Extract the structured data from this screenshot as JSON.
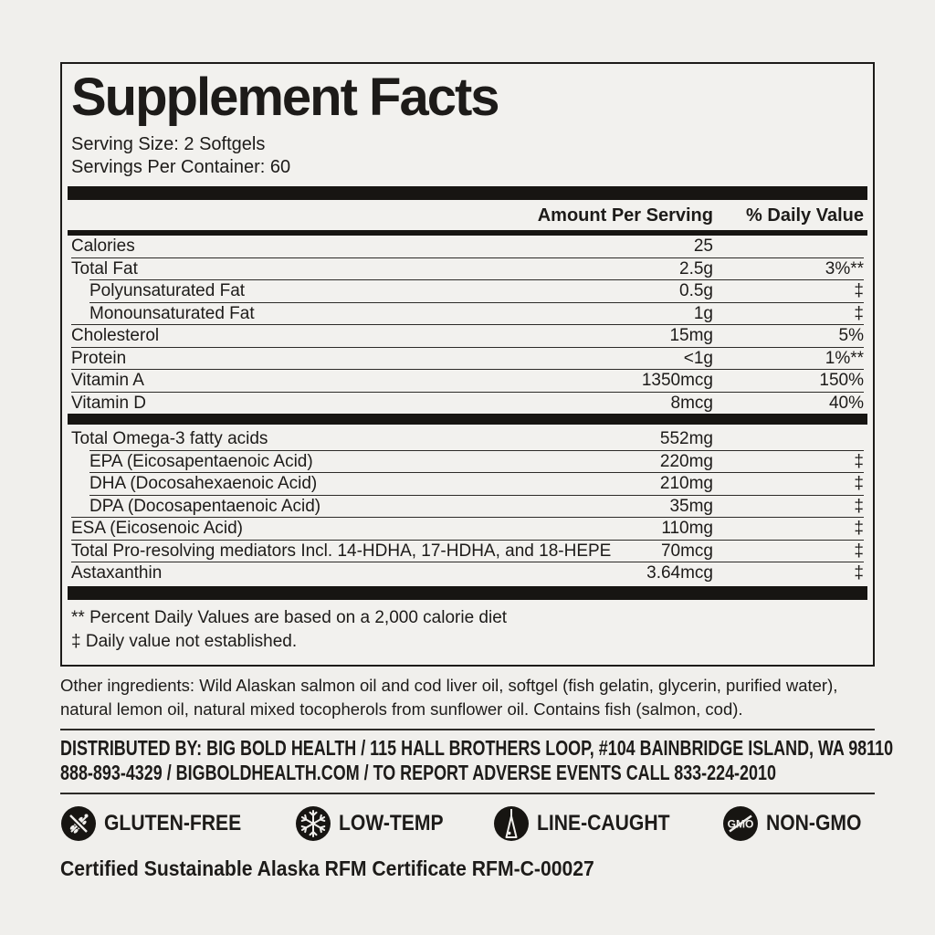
{
  "label": {
    "title": "Supplement Facts",
    "serving_size": "Serving Size: 2 Softgels",
    "servings_per_container": "Servings Per Container: 60",
    "columns": {
      "amount": "Amount Per Serving",
      "daily_value": "% Daily Value"
    },
    "nutrients": [
      {
        "name": "Calories",
        "amount": "25",
        "dv": "",
        "indent": false,
        "sep": "none"
      },
      {
        "name": "Total Fat",
        "amount": "2.5g",
        "dv": "3%**",
        "indent": false,
        "sep": "full"
      },
      {
        "name": "Polyunsaturated Fat",
        "amount": "0.5g",
        "dv": "‡",
        "indent": true,
        "sep": "inset"
      },
      {
        "name": "Monounsaturated Fat",
        "amount": "1g",
        "dv": "‡",
        "indent": true,
        "sep": "inset"
      },
      {
        "name": "Cholesterol",
        "amount": "15mg",
        "dv": "5%",
        "indent": false,
        "sep": "full"
      },
      {
        "name": "Protein",
        "amount": "<1g",
        "dv": "1%**",
        "indent": false,
        "sep": "full"
      },
      {
        "name": "Vitamin A",
        "amount": "1350mcg",
        "dv": "150%",
        "indent": false,
        "sep": "full"
      },
      {
        "name": "Vitamin D",
        "amount": "8mcg",
        "dv": "40%",
        "indent": false,
        "sep": "full"
      }
    ],
    "omega_section": [
      {
        "name": "Total Omega-3 fatty acids",
        "amount": "552mg",
        "dv": "",
        "indent": false,
        "sep": "none"
      },
      {
        "name": "EPA (Eicosapentaenoic Acid)",
        "amount": "220mg",
        "dv": "‡",
        "indent": true,
        "sep": "inset"
      },
      {
        "name": "DHA (Docosahexaenoic Acid)",
        "amount": "210mg",
        "dv": "‡",
        "indent": true,
        "sep": "inset"
      },
      {
        "name": "DPA (Docosapentaenoic Acid)",
        "amount": "35mg",
        "dv": "‡",
        "indent": true,
        "sep": "inset"
      },
      {
        "name": "ESA (Eicosenoic Acid)",
        "amount": "110mg",
        "dv": "‡",
        "indent": false,
        "sep": "full"
      },
      {
        "name": "Total Pro-resolving mediators Incl. 14-HDHA, 17-HDHA, and 18-HEPE",
        "amount": "70mcg",
        "dv": "‡",
        "indent": false,
        "sep": "full"
      },
      {
        "name": "Astaxanthin",
        "amount": "3.64mcg",
        "dv": "‡",
        "indent": false,
        "sep": "full"
      }
    ],
    "footnotes": [
      "** Percent Daily Values are based on a 2,000 calorie diet",
      "‡ Daily value not established."
    ],
    "other_ingredients": "Other ingredients: Wild Alaskan salmon oil and cod liver oil, softgel (fish gelatin, glycerin, purified water), natural lemon oil, natural mixed tocopherols from sunflower oil. Contains fish (salmon, cod).",
    "distributor_line1": "DISTRIBUTED BY: BIG BOLD HEALTH / 115 HALL BROTHERS LOOP, #104 BAINBRIDGE ISLAND, WA 98110",
    "distributor_line2": "888-893-4329 / BIGBOLDHEALTH.COM / TO REPORT ADVERSE EVENTS CALL 833-224-2010",
    "badges": [
      {
        "icon": "wheat-crossed-icon",
        "label": "GLUTEN-FREE"
      },
      {
        "icon": "snowflake-icon",
        "label": "LOW-TEMP"
      },
      {
        "icon": "fishing-line-icon",
        "label": "LINE-CAUGHT"
      },
      {
        "icon": "gmo-crossed-icon",
        "label": "NON-GMO"
      }
    ],
    "certificate": "Certified Sustainable Alaska RFM Certificate RFM-C-00027",
    "colors": {
      "background": "#f0efec",
      "ink": "#1d1b19",
      "bar": "#171512"
    }
  }
}
